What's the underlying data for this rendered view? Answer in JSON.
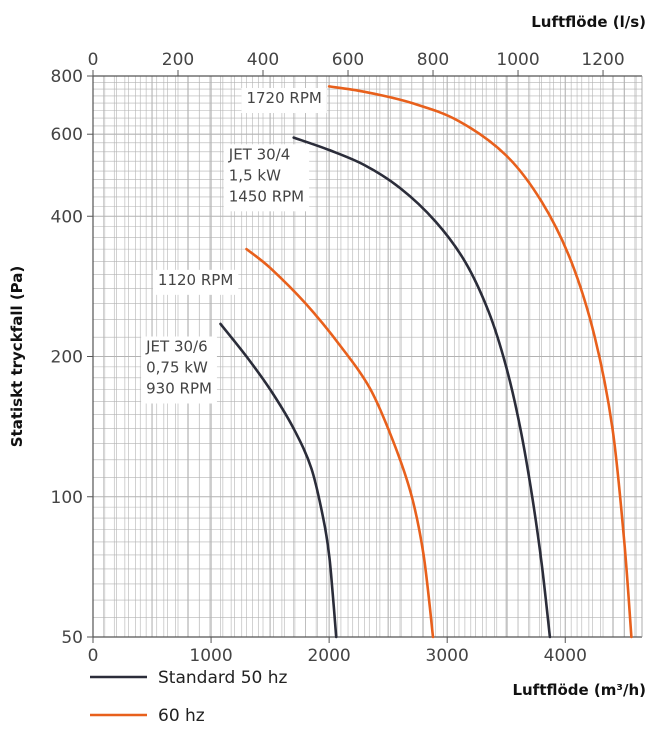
{
  "chart_data": {
    "type": "line",
    "xlabel": "Luftflöde (m³/h)",
    "x2label": "Luftflöde (l/s)",
    "ylabel": "Statiskt tryckfall (Pa)",
    "xlim": [
      0,
      4650
    ],
    "x2lim": [
      0,
      1291.67
    ],
    "ylim": [
      50,
      800
    ],
    "yscale": "log",
    "grid": true,
    "x_ticks": [
      "0",
      "1000",
      "2000",
      "3000",
      "4000"
    ],
    "x_tick_values": [
      0,
      1000,
      2000,
      3000,
      4000
    ],
    "x2_ticks": [
      "0",
      "200",
      "400",
      "600",
      "800",
      "1000",
      "1200"
    ],
    "x2_tick_values": [
      0,
      200,
      400,
      600,
      800,
      1000,
      1200
    ],
    "y_ticks": [
      "50",
      "100",
      "200",
      "400",
      "600",
      "800"
    ],
    "y_tick_values": [
      50,
      100,
      200,
      400,
      600,
      800
    ],
    "colors": {
      "standard": "#2b2d3a",
      "hz60": "#e8601c",
      "grid": "#b3b3b3"
    },
    "series": [
      {
        "key": "jet306_930",
        "color": "#2b2d3a",
        "points": [
          [
            1080,
            235
          ],
          [
            1300,
            200
          ],
          [
            1500,
            170
          ],
          [
            1700,
            140
          ],
          [
            1850,
            115
          ],
          [
            1950,
            90
          ],
          [
            2000,
            75
          ],
          [
            2030,
            62
          ],
          [
            2060,
            50
          ]
        ]
      },
      {
        "key": "jet306_1120",
        "color": "#e8601c",
        "points": [
          [
            1300,
            340
          ],
          [
            1500,
            310
          ],
          [
            1800,
            260
          ],
          [
            2100,
            210
          ],
          [
            2350,
            170
          ],
          [
            2550,
            130
          ],
          [
            2700,
            100
          ],
          [
            2800,
            75
          ],
          [
            2880,
            50
          ]
        ]
      },
      {
        "key": "jet304_1450",
        "color": "#2b2d3a",
        "points": [
          [
            1700,
            590
          ],
          [
            2000,
            555
          ],
          [
            2300,
            515
          ],
          [
            2600,
            460
          ],
          [
            2900,
            390
          ],
          [
            3150,
            320
          ],
          [
            3350,
            250
          ],
          [
            3500,
            190
          ],
          [
            3620,
            140
          ],
          [
            3720,
            100
          ],
          [
            3800,
            72
          ],
          [
            3870,
            50
          ]
        ]
      },
      {
        "key": "jet304_1720",
        "color": "#e8601c",
        "points": [
          [
            2000,
            760
          ],
          [
            2300,
            740
          ],
          [
            2700,
            700
          ],
          [
            3100,
            640
          ],
          [
            3500,
            540
          ],
          [
            3800,
            430
          ],
          [
            4050,
            320
          ],
          [
            4250,
            220
          ],
          [
            4400,
            140
          ],
          [
            4500,
            80
          ],
          [
            4560,
            50
          ]
        ]
      }
    ],
    "annotations": [
      {
        "key": "rpm1720",
        "lines": [
          "1720 RPM"
        ],
        "x": 1300,
        "y": 700
      },
      {
        "key": "jet304",
        "lines": [
          "JET 30/4",
          "1,5 kW",
          "1450 RPM"
        ],
        "x": 1150,
        "y": 530
      },
      {
        "key": "rpm1120",
        "lines": [
          "1120 RPM"
        ],
        "x": 550,
        "y": 285
      },
      {
        "key": "jet306",
        "lines": [
          "JET 30/6",
          "0,75 kW",
          "930 RPM"
        ],
        "x": 450,
        "y": 205
      }
    ],
    "legend": {
      "placement": "bottom-left",
      "entries": [
        {
          "label": "Standard 50 hz",
          "color": "#2b2d3a"
        },
        {
          "label": "60 hz",
          "color": "#e8601c"
        }
      ]
    }
  }
}
